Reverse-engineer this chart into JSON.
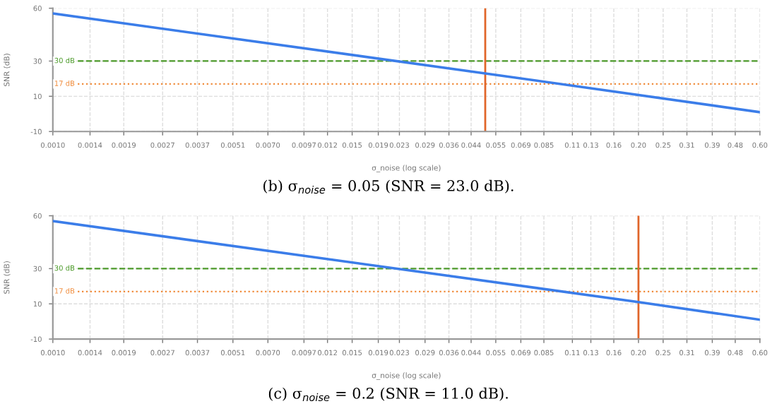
{
  "chart_data": [
    {
      "type": "line",
      "xlabel": "σ_noise (log scale)",
      "ylabel": "SNR (dB)",
      "annotations": [
        "(b) σ$_{noise}$ = 0.05 (SNR = 23.0 dB)."
      ],
      "series": [
        {
          "color": "#3b7de9",
          "x": [
            0.001,
            0.05,
            0.6
          ],
          "values": [
            57,
            23,
            1
          ]
        }
      ],
      "log": "x",
      "grid": true,
      "xlim": [
        0.001,
        0.6
      ],
      "ylim": [
        -10,
        60
      ],
      "yticks": [
        -10,
        10,
        30,
        60
      ],
      "xticks": [
        {
          "value": 0.001,
          "label": "0.0010"
        },
        0.0014,
        0.0019,
        0.0027,
        0.0037,
        0.0051,
        {
          "value": 0.007,
          "label": "0.0070"
        },
        0.0097,
        0.012,
        0.015,
        0.019,
        0.023,
        0.029,
        0.036,
        0.044,
        0.055,
        0.069,
        0.085,
        0.11,
        0.13,
        0.16,
        {
          "value": 0.2,
          "label": "0.20"
        },
        0.25,
        0.31,
        0.39,
        0.48,
        {
          "value": 0.6,
          "label": "0.60"
        }
      ],
      "ref_lines": [
        {
          "axis": "y",
          "value": 30,
          "label": "30 dB",
          "color": "#4c9a2a",
          "line_style": "dashed"
        },
        {
          "axis": "y",
          "value": 17,
          "label": "17 dB",
          "color": "#f08c3c",
          "line_style": "dotted"
        },
        {
          "axis": "x",
          "value": 0.05,
          "color": "#e0662a",
          "line_style": "solid"
        }
      ]
    },
    {
      "type": "line",
      "xlabel": "σ_noise (log scale)",
      "ylabel": "SNR (dB)",
      "annotations": [
        "(c) σ$_{noise}$ = 0.2 (SNR = 11.0 dB)."
      ],
      "series": [
        {
          "color": "#3b7de9",
          "x": [
            0.001,
            0.2,
            0.6
          ],
          "values": [
            57,
            11,
            1
          ]
        }
      ],
      "log": "x",
      "grid": true,
      "xlim": [
        0.001,
        0.6
      ],
      "ylim": [
        -10,
        60
      ],
      "yticks": [
        -10,
        10,
        30,
        60
      ],
      "xticks": [
        {
          "value": 0.001,
          "label": "0.0010"
        },
        0.0014,
        0.0019,
        0.0027,
        0.0037,
        0.0051,
        {
          "value": 0.007,
          "label": "0.0070"
        },
        0.0097,
        0.012,
        0.015,
        0.019,
        0.023,
        0.029,
        0.036,
        0.044,
        0.055,
        0.069,
        0.085,
        0.11,
        0.13,
        0.16,
        {
          "value": 0.2,
          "label": "0.20"
        },
        0.25,
        0.31,
        0.39,
        0.48,
        {
          "value": 0.6,
          "label": "0.60"
        }
      ],
      "ref_lines": [
        {
          "axis": "y",
          "value": 30,
          "label": "30 dB",
          "color": "#4c9a2a",
          "line_style": "dashed"
        },
        {
          "axis": "y",
          "value": 17,
          "label": "17 dB",
          "color": "#f08c3c",
          "line_style": "dotted"
        },
        {
          "axis": "x",
          "value": 0.2,
          "color": "#e0662a",
          "line_style": "solid"
        }
      ]
    }
  ]
}
